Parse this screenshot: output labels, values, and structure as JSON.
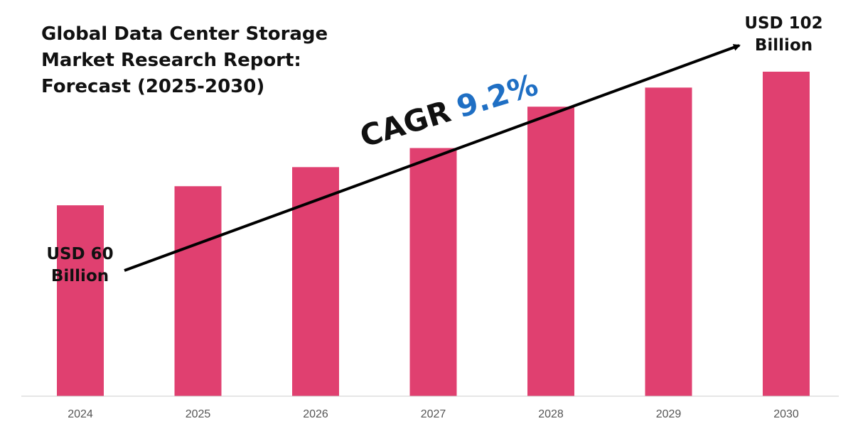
{
  "title_lines": [
    "Global Data Center Storage",
    "Market Research Report:",
    "Forecast (2025-2030)"
  ],
  "annotations": {
    "start_value_lines": [
      "USD 60",
      "Billion"
    ],
    "end_value_lines": [
      "USD 102",
      "Billion"
    ],
    "cagr_label": "CAGR",
    "cagr_value": "9.2%"
  },
  "colors": {
    "bar": "#e04070",
    "cagr_value": "#1f6fc4",
    "arrow": "#000000",
    "axis": "#cccccc",
    "tick_label": "#555555"
  },
  "chart_data": {
    "type": "bar",
    "title": "Global Data Center Storage Market Research Report: Forecast (2025-2030)",
    "categories": [
      "2024",
      "2025",
      "2026",
      "2027",
      "2028",
      "2029",
      "2030"
    ],
    "series": [
      {
        "values": [
          60,
          66,
          72,
          78,
          91,
          97,
          102
        ]
      }
    ],
    "xlabel": "",
    "ylabel": "",
    "ylim": [
      0,
      104
    ],
    "grid": false,
    "legend": "none",
    "data_labels": {
      "2024": "USD 60 Billion",
      "2030": "USD 102 Billion"
    },
    "trend_annotation": "CAGR 9.2%"
  }
}
